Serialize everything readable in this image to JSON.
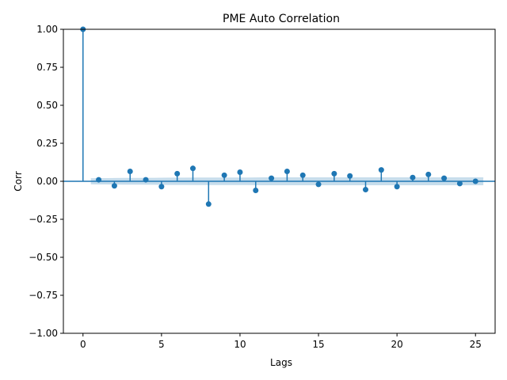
{
  "chart_data": {
    "type": "scatter",
    "title": "PME Auto Correlation",
    "xlabel": "Lags",
    "ylabel": "Corr",
    "xlim": [
      -1.25,
      26.25
    ],
    "ylim": [
      -1.0,
      1.0
    ],
    "xticks": [
      0,
      5,
      10,
      15,
      20,
      25
    ],
    "xtick_labels": [
      "0",
      "5",
      "10",
      "15",
      "20",
      "25"
    ],
    "yticks": [
      -1.0,
      -0.75,
      -0.5,
      -0.25,
      0.0,
      0.25,
      0.5,
      0.75,
      1.0
    ],
    "ytick_labels": [
      "−1.00",
      "−0.75",
      "−0.50",
      "−0.25",
      "0.00",
      "0.25",
      "0.50",
      "0.75",
      "1.00"
    ],
    "grid": false,
    "style": "stem",
    "colors": {
      "marker": "#1f77b4",
      "confidence_band": "#1f77b4",
      "axis": "#000000"
    },
    "series": [
      {
        "x": [
          0,
          1,
          2,
          3,
          4,
          5,
          6,
          7,
          8,
          9,
          10,
          11,
          12,
          13,
          14,
          15,
          16,
          17,
          18,
          19,
          20,
          21,
          22,
          23,
          24,
          25
        ],
        "values": [
          1.0,
          0.01,
          -0.03,
          0.065,
          0.01,
          -0.035,
          0.05,
          0.085,
          -0.15,
          0.04,
          0.06,
          -0.06,
          0.02,
          0.065,
          0.04,
          -0.02,
          0.05,
          0.035,
          -0.055,
          0.075,
          -0.035,
          0.025,
          0.045,
          0.02,
          -0.015,
          0.0
        ]
      }
    ],
    "confidence_band": {
      "x_start": 0.5,
      "x_end": 25.5,
      "upper": [
        0.02,
        0.021,
        0.022,
        0.022,
        0.023,
        0.024,
        0.024,
        0.025,
        0.025,
        0.025,
        0.025,
        0.026,
        0.026,
        0.026,
        0.026,
        0.026,
        0.026,
        0.026,
        0.026,
        0.026,
        0.026,
        0.026,
        0.026,
        0.026,
        0.026,
        0.026
      ]
    }
  }
}
